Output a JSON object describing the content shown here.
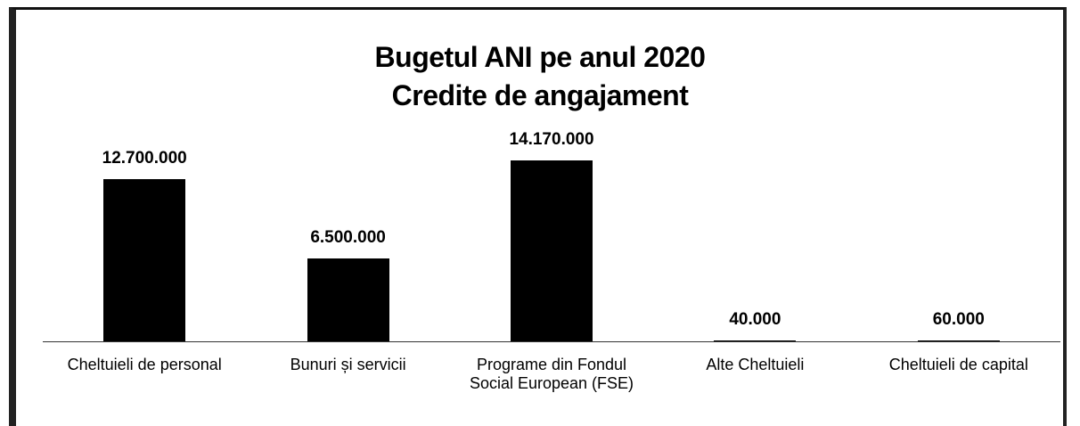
{
  "chart_data": {
    "type": "bar",
    "title": "Bugetul ANI pe anul 2020",
    "subtitle": "Credite de angajament",
    "categories": [
      "Cheltuieli de personal",
      "Bunuri și servicii",
      "Programe din Fondul Social European (FSE)",
      "Alte Cheltuieli",
      "Cheltuieli de capital"
    ],
    "values": [
      12700000,
      6500000,
      14170000,
      40000,
      60000
    ],
    "value_labels": [
      "12.700.000",
      "6.500.000",
      "14.170.000",
      "40.000",
      "60.000"
    ],
    "color": "#000000"
  }
}
